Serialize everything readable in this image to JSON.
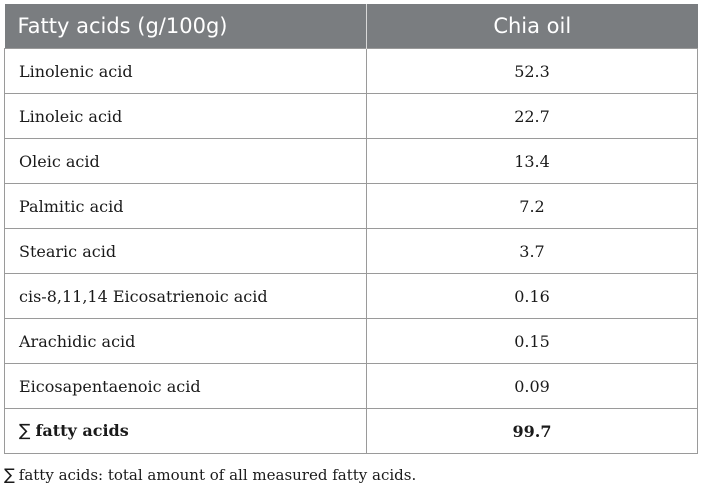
{
  "table": {
    "headers": [
      "Fatty acids (g/100g)",
      "Chia oil"
    ],
    "rows": [
      {
        "name": "Linolenic acid",
        "value": "52.3"
      },
      {
        "name": "Linoleic acid",
        "value": "22.7"
      },
      {
        "name": "Oleic acid",
        "value": "13.4"
      },
      {
        "name": "Palmitic acid",
        "value": "7.2"
      },
      {
        "name": "Stearic acid",
        "value": "3.7"
      },
      {
        "name": "cis-8,11,14 Eicosatrienoic acid",
        "value": "0.16"
      },
      {
        "name": "Arachidic acid",
        "value": "0.15"
      },
      {
        "name": "Eicosapentaenoic acid",
        "value": "0.09"
      }
    ],
    "total": {
      "symbol": "∑",
      "name": "fatty acids",
      "value": "99.7"
    }
  },
  "footnote": {
    "symbol": "∑",
    "text": "fatty acids: total amount of all measured fatty acids."
  },
  "colors": {
    "header_bg": "#7a7d80",
    "header_text": "#ffffff",
    "border": "#9a9a9a"
  }
}
